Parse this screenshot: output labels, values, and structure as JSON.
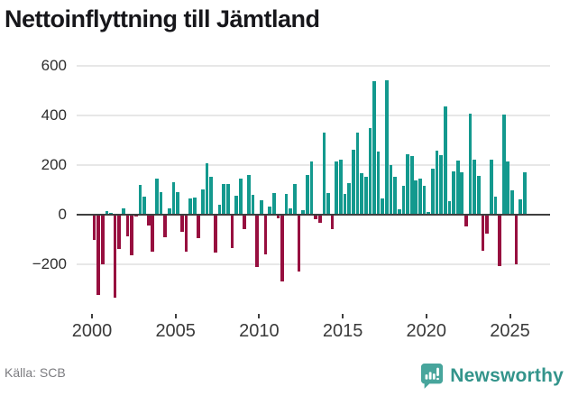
{
  "header": {
    "title": "Nettoinflyttning till Jämtland"
  },
  "footer": {
    "source": "Källa: SCB",
    "logo_text": "Newsworthy",
    "logo_icon": "speech-bubble-bar-chart-exclamation",
    "logo_color": "#33948b",
    "logo_icon_color": "#47a59c"
  },
  "chart_data": {
    "type": "bar",
    "title": "Nettoinflyttning till Jämtland",
    "x_start": "2000-Q1",
    "frequency": "quarterly",
    "values": [
      -103,
      -325,
      -200,
      15,
      8,
      -336,
      -139,
      26,
      -89,
      -164,
      -8,
      120,
      74,
      -43,
      -148,
      144,
      91,
      -92,
      25,
      130,
      91,
      -70,
      -148,
      65,
      68,
      -96,
      101,
      209,
      154,
      -154,
      41,
      125,
      125,
      -135,
      76,
      144,
      -59,
      162,
      80,
      -210,
      59,
      -162,
      31,
      86,
      -15,
      -270,
      83,
      25,
      125,
      -231,
      18,
      162,
      215,
      -18,
      -31,
      330,
      89,
      -58,
      215,
      221,
      82,
      126,
      261,
      332,
      166,
      154,
      348,
      538,
      255,
      64,
      542,
      199,
      154,
      21,
      117,
      243,
      235,
      140,
      145,
      115,
      10,
      185,
      260,
      240,
      437,
      55,
      175,
      220,
      170,
      -46,
      409,
      222,
      156,
      -144,
      -78,
      222,
      74,
      -209,
      405,
      215,
      98,
      -201,
      62,
      170
    ],
    "x_tick_labels": [
      "2000",
      "2005",
      "2010",
      "2015",
      "2020",
      "2025"
    ],
    "y_ticks": [
      600,
      400,
      200,
      0,
      -200
    ],
    "y_tick_labels": [
      "600",
      "400",
      "200",
      "0",
      "−200"
    ],
    "ylim": [
      -400,
      650
    ],
    "grid": "horizontal",
    "legend": "none",
    "positive_color": "#13998e",
    "negative_color": "#970f3f",
    "axis_color": "#3f3f3f",
    "gridline_color": "#e7e7e7"
  }
}
